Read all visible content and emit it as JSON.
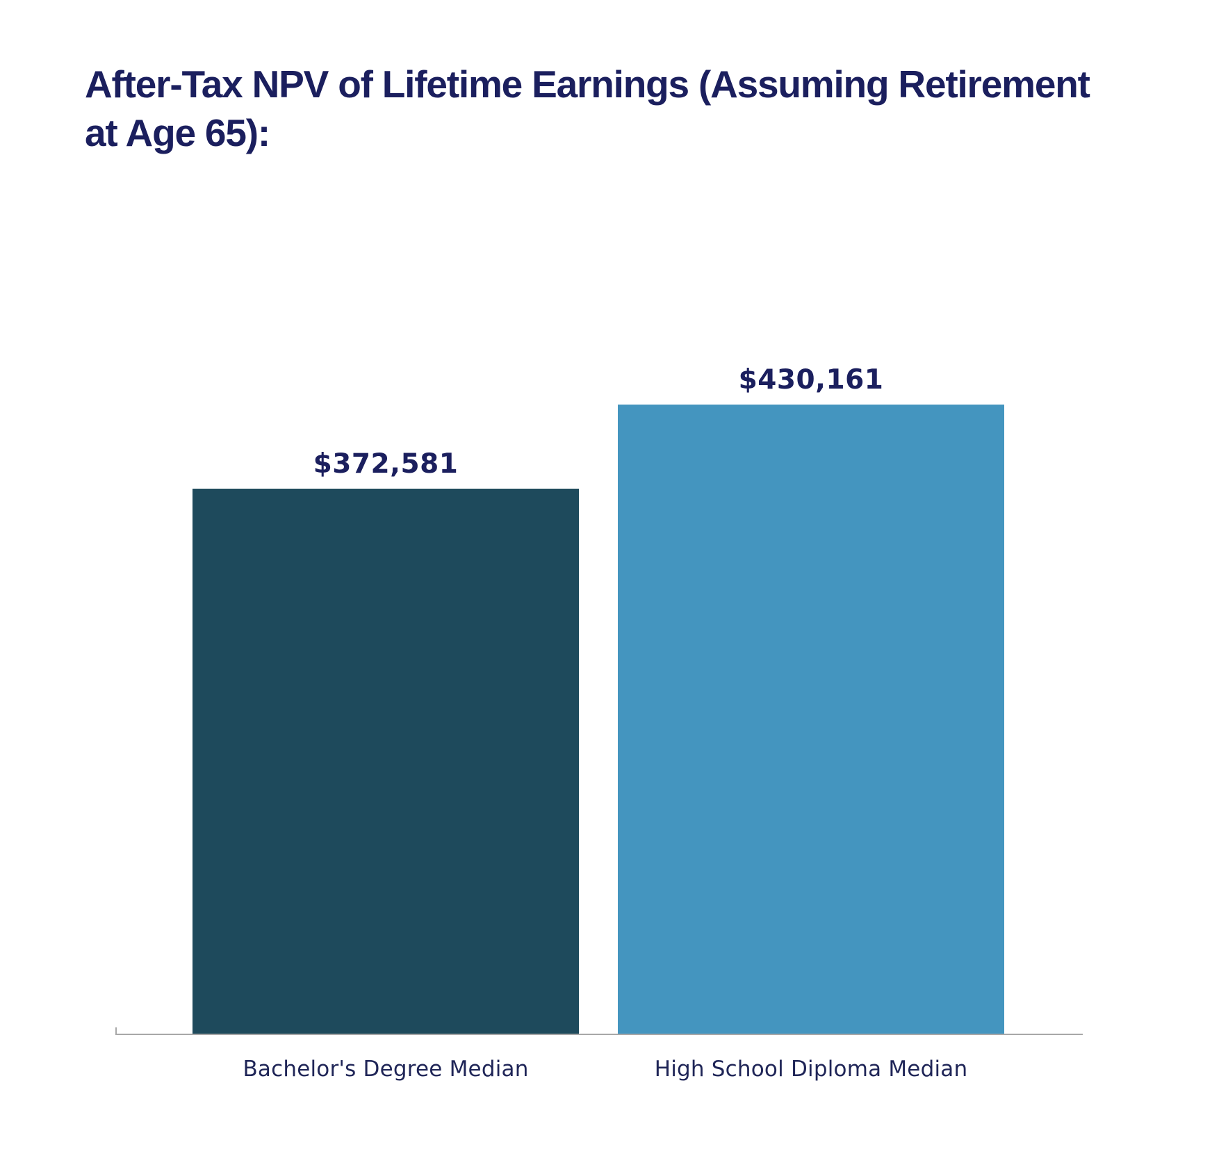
{
  "chart_data": {
    "type": "bar",
    "title": "After-Tax NPV of Lifetime Earnings (Assuming Retirement at Age 65):",
    "title_lines": [
      "After-Tax NPV of Lifetime Earnings (Assuming Retirement",
      "at Age 65):"
    ],
    "categories": [
      "Bachelor's Degree Median",
      "High School Diploma Median"
    ],
    "values": [
      372581,
      430161
    ],
    "value_labels": [
      "$372,581",
      "$430,161"
    ],
    "colors": [
      "#1E4A5C",
      "#4495BF"
    ],
    "xlabel": "",
    "ylabel": "",
    "ylim": [
      0,
      430161
    ],
    "grid": false,
    "legend": null,
    "show_y_axis": false
  },
  "colors": {
    "title_text": "#1B1F5E",
    "value_text": "#1B1F5E",
    "category_text": "#1F2557",
    "axis": "#A8A8A8",
    "background": "#FFFFFF"
  }
}
